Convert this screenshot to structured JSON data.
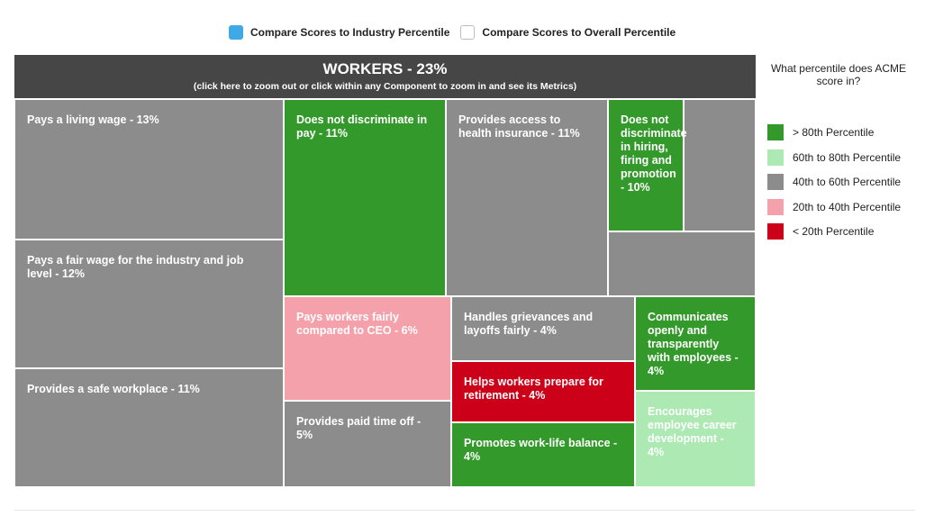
{
  "toggles": [
    {
      "label": "Compare Scores to Industry Percentile",
      "checked": true
    },
    {
      "label": "Compare Scores to Overall Percentile",
      "checked": false
    }
  ],
  "header": {
    "title": "WORKERS - 23%",
    "subtitle": "(click here to zoom out or click within any Component to zoom in and see its Metrics)"
  },
  "legend": {
    "question": "What percentile does ACME score in?",
    "items": [
      {
        "label": "> 80th Percentile",
        "color": "#33992a"
      },
      {
        "label": "60th to 80th Percentile",
        "color": "#ace9b3"
      },
      {
        "label": "40th to 60th Percentile",
        "color": "#8c8c8c"
      },
      {
        "label": "20th to 40th Percentile",
        "color": "#f4a1ab"
      },
      {
        "label": "< 20th Percentile",
        "color": "#cc0018"
      }
    ]
  },
  "chart_data": {
    "type": "treemap",
    "title": "WORKERS - 23%",
    "items": [
      {
        "label": "Pays a living wage - 13%",
        "value": 13,
        "band": "40th to 60th Percentile"
      },
      {
        "label": "Pays a fair wage for the industry and job level - 12%",
        "value": 12,
        "band": "40th to 60th Percentile"
      },
      {
        "label": "Provides a safe workplace - 11%",
        "value": 11,
        "band": "40th to 60th Percentile"
      },
      {
        "label": "Does not discriminate in pay - 11%",
        "value": 11,
        "band": "> 80th Percentile"
      },
      {
        "label": "Provides access to health insurance - 11%",
        "value": 11,
        "band": "40th to 60th Percentile"
      },
      {
        "label": "Does not discriminate in hiring, firing and promotion - 10%",
        "value": 10,
        "band": "> 80th Percentile"
      },
      {
        "label": "Pays workers fairly compared to CEO - 6%",
        "value": 6,
        "band": "20th to 40th Percentile"
      },
      {
        "label": "Provides paid time off - 5%",
        "value": 5,
        "band": "40th to 60th Percentile"
      },
      {
        "label": "Handles grievances and layoffs fairly - 4%",
        "value": 4,
        "band": "40th to 60th Percentile"
      },
      {
        "label": "Helps workers prepare for retirement - 4%",
        "value": 4,
        "band": "< 20th Percentile"
      },
      {
        "label": "Promotes work-life balance - 4%",
        "value": 4,
        "band": "> 80th Percentile"
      },
      {
        "label": "Communicates openly and transparently with employees - 4%",
        "value": 4,
        "band": "> 80th Percentile"
      },
      {
        "label": "Encourages employee career development - 4%",
        "value": 4,
        "band": "60th to 80th Percentile"
      }
    ]
  }
}
